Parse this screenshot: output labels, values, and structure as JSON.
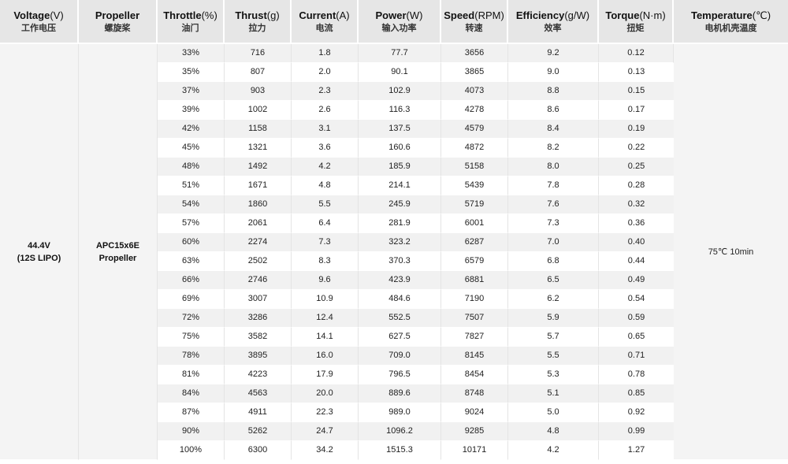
{
  "headers": [
    {
      "en": "Voltage",
      "unit": "(V)",
      "cn": "工作电压"
    },
    {
      "en": "Propeller",
      "unit": "",
      "cn": "螺旋桨"
    },
    {
      "en": "Throttle",
      "unit": "(%)",
      "cn": "油门"
    },
    {
      "en": "Thrust",
      "unit": "(g)",
      "cn": "拉力"
    },
    {
      "en": "Current",
      "unit": "(A)",
      "cn": "电流"
    },
    {
      "en": "Power",
      "unit": "(W)",
      "cn": "输入功率"
    },
    {
      "en": "Speed",
      "unit": "(RPM)",
      "cn": "转速"
    },
    {
      "en": "Efficiency",
      "unit": "(g/W)",
      "cn": "效率"
    },
    {
      "en": "Torque",
      "unit": "(N·m)",
      "cn": "扭矩"
    },
    {
      "en": "Temperature",
      "unit": "(℃)",
      "cn": "电机机壳温度"
    }
  ],
  "voltage": {
    "line1": "44.4V",
    "line2": "(12S LIPO)"
  },
  "propeller": {
    "line1": "APC15x6E",
    "line2": "Propeller"
  },
  "temperature": "75℃ 10min",
  "rows": [
    [
      "33%",
      "716",
      "1.8",
      "77.7",
      "3656",
      "9.2",
      "0.12"
    ],
    [
      "35%",
      "807",
      "2.0",
      "90.1",
      "3865",
      "9.0",
      "0.13"
    ],
    [
      "37%",
      "903",
      "2.3",
      "102.9",
      "4073",
      "8.8",
      "0.15"
    ],
    [
      "39%",
      "1002",
      "2.6",
      "116.3",
      "4278",
      "8.6",
      "0.17"
    ],
    [
      "42%",
      "1158",
      "3.1",
      "137.5",
      "4579",
      "8.4",
      "0.19"
    ],
    [
      "45%",
      "1321",
      "3.6",
      "160.6",
      "4872",
      "8.2",
      "0.22"
    ],
    [
      "48%",
      "1492",
      "4.2",
      "185.9",
      "5158",
      "8.0",
      "0.25"
    ],
    [
      "51%",
      "1671",
      "4.8",
      "214.1",
      "5439",
      "7.8",
      "0.28"
    ],
    [
      "54%",
      "1860",
      "5.5",
      "245.9",
      "5719",
      "7.6",
      "0.32"
    ],
    [
      "57%",
      "2061",
      "6.4",
      "281.9",
      "6001",
      "7.3",
      "0.36"
    ],
    [
      "60%",
      "2274",
      "7.3",
      "323.2",
      "6287",
      "7.0",
      "0.40"
    ],
    [
      "63%",
      "2502",
      "8.3",
      "370.3",
      "6579",
      "6.8",
      "0.44"
    ],
    [
      "66%",
      "2746",
      "9.6",
      "423.9",
      "6881",
      "6.5",
      "0.49"
    ],
    [
      "69%",
      "3007",
      "10.9",
      "484.6",
      "7190",
      "6.2",
      "0.54"
    ],
    [
      "72%",
      "3286",
      "12.4",
      "552.5",
      "7507",
      "5.9",
      "0.59"
    ],
    [
      "75%",
      "3582",
      "14.1",
      "627.5",
      "7827",
      "5.7",
      "0.65"
    ],
    [
      "78%",
      "3895",
      "16.0",
      "709.0",
      "8145",
      "5.5",
      "0.71"
    ],
    [
      "81%",
      "4223",
      "17.9",
      "796.5",
      "8454",
      "5.3",
      "0.78"
    ],
    [
      "84%",
      "4563",
      "20.0",
      "889.6",
      "8748",
      "5.1",
      "0.85"
    ],
    [
      "87%",
      "4911",
      "22.3",
      "989.0",
      "9024",
      "5.0",
      "0.92"
    ],
    [
      "90%",
      "5262",
      "24.7",
      "1096.2",
      "9285",
      "4.8",
      "0.99"
    ],
    [
      "100%",
      "6300",
      "34.2",
      "1515.3",
      "10171",
      "4.2",
      "1.27"
    ]
  ]
}
